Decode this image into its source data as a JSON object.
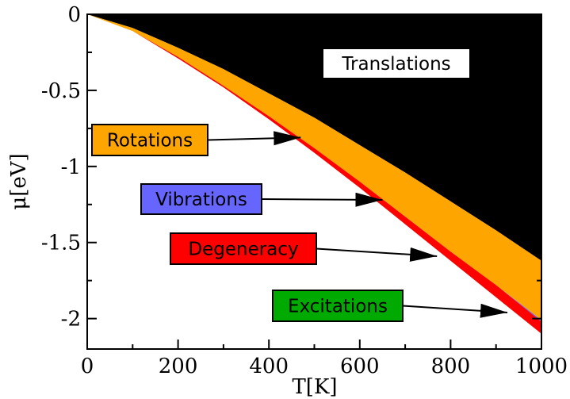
{
  "chart_data": {
    "type": "area",
    "xlabel": "T[K]",
    "ylabel": "μ[eV]",
    "xlim": [
      0,
      1000
    ],
    "ylim": [
      -2.2,
      0
    ],
    "xticks": [
      {
        "value": 0,
        "label": "0"
      },
      {
        "value": 200,
        "label": "200"
      },
      {
        "value": 400,
        "label": "400"
      },
      {
        "value": 600,
        "label": "600"
      },
      {
        "value": 800,
        "label": "800"
      },
      {
        "value": 1000,
        "label": "1000"
      }
    ],
    "yticks": [
      {
        "value": 0,
        "label": "0"
      },
      {
        "value": -0.5,
        "label": "-0.5"
      },
      {
        "value": -1,
        "label": "-1"
      },
      {
        "value": -1.5,
        "label": "-1.5"
      },
      {
        "value": -2,
        "label": "-2"
      }
    ],
    "x": [
      0,
      100,
      200,
      300,
      400,
      500,
      600,
      700,
      800,
      900,
      1000
    ],
    "series": [
      {
        "name": "Translations",
        "color": "#000000",
        "values": [
          0,
          -0.09,
          -0.22,
          -0.36,
          -0.52,
          -0.68,
          -0.86,
          -1.04,
          -1.23,
          -1.42,
          -1.62
        ]
      },
      {
        "name": "Rotations",
        "color": "#FFA500",
        "values": [
          0,
          -0.11,
          -0.28,
          -0.47,
          -0.67,
          -0.88,
          -1.1,
          -1.33,
          -1.56,
          -1.78,
          -2.01
        ]
      },
      {
        "name": "Vibrations",
        "color": "#6666FF",
        "values": [
          0,
          -0.11,
          -0.28,
          -0.47,
          -0.67,
          -0.88,
          -1.1,
          -1.33,
          -1.56,
          -1.78,
          -2.02
        ]
      },
      {
        "name": "Degeneracy",
        "color": "#FF0000",
        "values": [
          0,
          -0.11,
          -0.29,
          -0.48,
          -0.69,
          -0.91,
          -1.14,
          -1.38,
          -1.62,
          -1.86,
          -2.1
        ]
      },
      {
        "name": "Excitations",
        "color": "#00AA00",
        "values": [
          0,
          -0.11,
          -0.29,
          -0.48,
          -0.69,
          -0.91,
          -1.14,
          -1.38,
          -1.62,
          -1.86,
          -2.1
        ]
      }
    ],
    "annotations": [
      {
        "id": "translations",
        "text": "Translations",
        "box_color": "#FFFFFF"
      },
      {
        "id": "rotations",
        "text": "Rotations",
        "box_color": "#FFA500",
        "arrow_to": [
          470,
          -0.81
        ]
      },
      {
        "id": "vibrations",
        "text": "Vibrations",
        "box_color": "#6666FF",
        "arrow_to": [
          650,
          -1.22
        ]
      },
      {
        "id": "degeneracy",
        "text": "Degeneracy",
        "box_color": "#FF0000",
        "arrow_to": [
          770,
          -1.59
        ]
      },
      {
        "id": "excitations",
        "text": "Excitations",
        "box_color": "#00AA00",
        "arrow_to": [
          925,
          -1.96
        ]
      }
    ],
    "grid": false,
    "legend": "none"
  }
}
